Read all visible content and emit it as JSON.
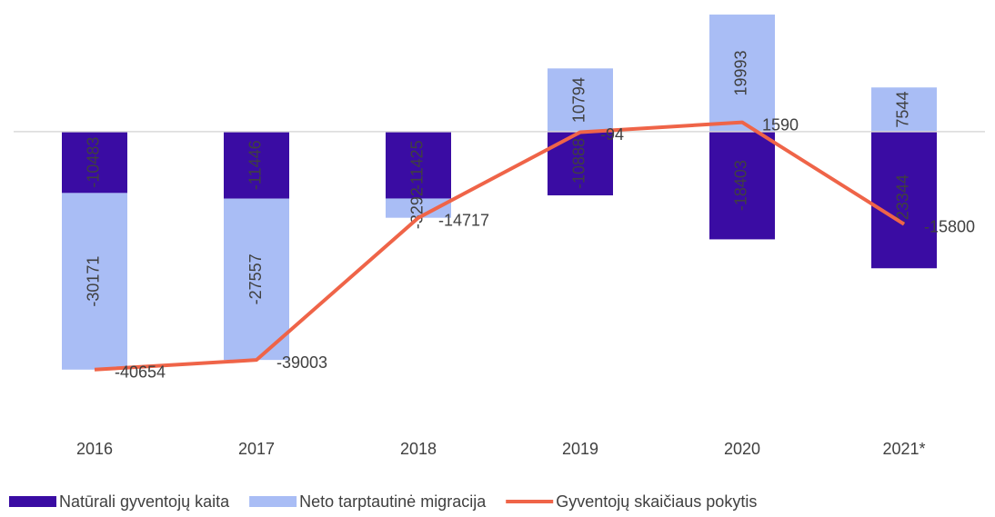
{
  "chart_data": {
    "type": "bar",
    "stacked": true,
    "categories": [
      "2016",
      "2017",
      "2018",
      "2019",
      "2020",
      "2021*"
    ],
    "series": [
      {
        "name": "Natūrali gyventojų kaita",
        "color": "#3a0ca3",
        "values": [
          -10483,
          -11446,
          -11425,
          -10888,
          -18403,
          -23344
        ]
      },
      {
        "name": "Neto tarptautinė migracija",
        "color": "#a9bdf5",
        "values": [
          -30171,
          -27557,
          -3292,
          10794,
          19993,
          7544
        ]
      },
      {
        "name": "Gyventojų skaičiaus pokytis",
        "type": "line",
        "color": "#ef6448",
        "values": [
          -40654,
          -39003,
          -14717,
          -94,
          1590,
          -15800
        ]
      }
    ],
    "ylim": [
      -50000,
      20000
    ],
    "legend": "bottom"
  }
}
